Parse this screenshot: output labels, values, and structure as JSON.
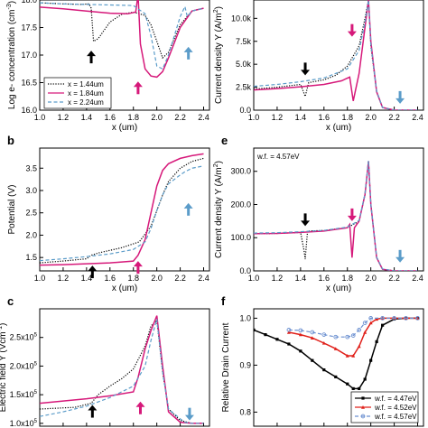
{
  "colors": {
    "black": "#000000",
    "magenta": "#d6197a",
    "blue": "#5b9cc9",
    "red": "#e0201a",
    "lightblue": "#6a8fd0"
  },
  "chart_data": [
    {
      "id": "a",
      "panel_label": "",
      "type": "line",
      "ylabel": "Log e- concentration (cm",
      "ylabel_sup": "-3",
      "ylabel_tail": ")",
      "xlabel": "x (um)",
      "xlim": [
        1.0,
        2.45
      ],
      "ylim": [
        16.0,
        18.0
      ],
      "xticks": [
        1.0,
        1.2,
        1.4,
        1.6,
        1.8,
        2.0,
        2.2,
        2.4
      ],
      "xtick_labels": [
        "1.0",
        "1.2",
        "1.4",
        "1.6",
        "1.8",
        "2.0",
        "2.2",
        "2.4"
      ],
      "yticks": [
        16.0,
        16.5,
        17.0,
        17.5,
        18.0
      ],
      "ytick_labels": [
        "16.0",
        "16.5",
        "17.0",
        "17.5",
        "18.0"
      ],
      "legend": {
        "placement": "bottom-left"
      },
      "series": [
        {
          "name": "x = 1.44um",
          "style": "dotted",
          "color": "#000000",
          "x": [
            1.0,
            1.2,
            1.35,
            1.42,
            1.44,
            1.46,
            1.5,
            1.6,
            1.7,
            1.8,
            1.9,
            1.95,
            2.0,
            2.05,
            2.1,
            2.2,
            2.3,
            2.4
          ],
          "y": [
            17.95,
            17.93,
            17.92,
            17.93,
            17.85,
            17.25,
            17.3,
            17.6,
            17.74,
            17.78,
            17.72,
            17.55,
            17.25,
            16.95,
            17.05,
            17.55,
            17.8,
            17.85
          ]
        },
        {
          "name": "x = 1.84um",
          "style": "solid",
          "color": "#d6197a",
          "x": [
            1.0,
            1.2,
            1.4,
            1.6,
            1.75,
            1.82,
            1.84,
            1.86,
            1.9,
            1.95,
            2.0,
            2.05,
            2.1,
            2.2,
            2.3,
            2.4
          ],
          "y": [
            17.87,
            17.84,
            17.8,
            17.76,
            17.75,
            17.78,
            18.1,
            17.2,
            16.75,
            16.62,
            16.6,
            16.7,
            16.95,
            17.5,
            17.8,
            17.85
          ]
        },
        {
          "name": "x = 2.24um",
          "style": "dashed",
          "color": "#5b9cc9",
          "x": [
            1.0,
            1.2,
            1.4,
            1.6,
            1.8,
            1.9,
            1.95,
            2.0,
            2.05,
            2.1,
            2.15,
            2.2,
            2.24,
            2.26,
            2.3,
            2.4
          ],
          "y": [
            17.95,
            17.93,
            17.92,
            17.91,
            17.9,
            17.75,
            17.35,
            16.8,
            16.75,
            17.0,
            17.35,
            17.7,
            17.88,
            17.7,
            17.8,
            17.85
          ]
        }
      ],
      "arrows": [
        {
          "x": 1.44,
          "color": "#000000",
          "dir": "up",
          "y": 17.08
        },
        {
          "x": 1.84,
          "color": "#d6197a",
          "dir": "up",
          "y": 16.52
        },
        {
          "x": 2.27,
          "color": "#5b9cc9",
          "dir": "up",
          "y": 17.15
        }
      ]
    },
    {
      "id": "b",
      "panel_label": "b",
      "type": "line",
      "ylabel": "Potential (V)",
      "xlabel": "x (um)",
      "xlim": [
        1.0,
        2.45
      ],
      "ylim": [
        1.2,
        3.95
      ],
      "xticks": [
        1.0,
        1.2,
        1.4,
        1.6,
        1.8,
        2.0,
        2.2,
        2.4
      ],
      "xtick_labels": [
        "1.0",
        "1.2",
        "1.4",
        "1.6",
        "1.8",
        "2.0",
        "2.2",
        "2.4"
      ],
      "yticks": [
        1.5,
        2.0,
        2.5,
        3.0,
        3.5
      ],
      "ytick_labels": [
        "1.5",
        "2.0",
        "2.5",
        "3.0",
        "3.5"
      ],
      "series": [
        {
          "name": "x = 1.44um",
          "style": "dotted",
          "color": "#000000",
          "x": [
            1.0,
            1.2,
            1.4,
            1.44,
            1.5,
            1.7,
            1.85,
            1.95,
            2.0,
            2.05,
            2.1,
            2.2,
            2.3,
            2.4
          ],
          "y": [
            1.38,
            1.42,
            1.47,
            1.55,
            1.6,
            1.72,
            1.85,
            2.2,
            2.55,
            2.9,
            3.2,
            3.5,
            3.65,
            3.72
          ]
        },
        {
          "name": "x = 1.84um",
          "style": "solid",
          "color": "#d6197a",
          "x": [
            1.0,
            1.2,
            1.4,
            1.6,
            1.8,
            1.84,
            1.9,
            1.95,
            2.0,
            2.05,
            2.1,
            2.2,
            2.3,
            2.4
          ],
          "y": [
            1.33,
            1.34,
            1.36,
            1.38,
            1.42,
            1.55,
            1.9,
            2.5,
            3.1,
            3.45,
            3.6,
            3.72,
            3.78,
            3.82
          ]
        },
        {
          "name": "x = 2.24um",
          "style": "dashed",
          "color": "#5b9cc9",
          "x": [
            1.0,
            1.2,
            1.4,
            1.6,
            1.8,
            1.9,
            1.95,
            2.0,
            2.05,
            2.1,
            2.2,
            2.24,
            2.3,
            2.4
          ],
          "y": [
            1.43,
            1.47,
            1.52,
            1.58,
            1.68,
            1.85,
            2.15,
            2.55,
            2.9,
            3.15,
            3.35,
            3.42,
            3.5,
            3.55
          ]
        }
      ],
      "arrows": [
        {
          "x": 1.45,
          "color": "#000000",
          "dir": "up",
          "y": 1.32
        },
        {
          "x": 1.84,
          "color": "#d6197a",
          "dir": "up",
          "y": 1.42
        },
        {
          "x": 2.27,
          "color": "#5b9cc9",
          "dir": "up",
          "y": 2.72
        }
      ]
    },
    {
      "id": "c",
      "panel_label": "c",
      "type": "line",
      "ylabel": "Electric field Y (Vcm",
      "ylabel_sup": "-1",
      "ylabel_tail": ")",
      "xlim": [
        1.0,
        2.45
      ],
      "ylim": [
        95000,
        300000
      ],
      "yticks": [
        100000,
        150000,
        200000,
        250000
      ],
      "ytick_labels": [
        "1.0x10",
        "1.5x10",
        "2.0x10",
        "2.5x10"
      ],
      "ytick_sup": "5",
      "series": [
        {
          "name": "x = 1.44um",
          "style": "dotted",
          "color": "#000000",
          "x": [
            1.0,
            1.3,
            1.44,
            1.5,
            1.6,
            1.7,
            1.8,
            1.9,
            1.95,
            2.0,
            2.05,
            2.1,
            2.2,
            2.3,
            2.4
          ],
          "y": [
            125000,
            128000,
            135000,
            150000,
            165000,
            178000,
            195000,
            235000,
            270000,
            280000,
            190000,
            125000,
            105000,
            100000,
            100000
          ]
        },
        {
          "name": "x = 1.84um",
          "style": "solid",
          "color": "#d6197a",
          "x": [
            1.0,
            1.2,
            1.4,
            1.6,
            1.8,
            1.84,
            1.9,
            1.95,
            2.0,
            2.05,
            2.1,
            2.2,
            2.3,
            2.4
          ],
          "y": [
            135000,
            139000,
            143000,
            148000,
            155000,
            180000,
            230000,
            262000,
            288000,
            200000,
            120000,
            102000,
            100000,
            100000
          ]
        },
        {
          "name": "x = 2.24um",
          "style": "dashed",
          "color": "#5b9cc9",
          "x": [
            1.0,
            1.2,
            1.4,
            1.6,
            1.8,
            1.9,
            1.95,
            2.0,
            2.05,
            2.1,
            2.2,
            2.24,
            2.3,
            2.4
          ],
          "y": [
            112000,
            120000,
            130000,
            145000,
            165000,
            200000,
            245000,
            282000,
            190000,
            125000,
            108000,
            102000,
            100000,
            100000
          ]
        }
      ],
      "arrows": [
        {
          "x": 1.45,
          "color": "#000000",
          "dir": "up",
          "y": 132000
        },
        {
          "x": 1.86,
          "color": "#d6197a",
          "dir": "up",
          "y": 138000
        },
        {
          "x": 2.28,
          "color": "#5b9cc9",
          "dir": "down",
          "y": 105000
        }
      ]
    },
    {
      "id": "d",
      "panel_label": "",
      "type": "line",
      "ylabel": "Current density Y (A/m",
      "ylabel_sup": "2",
      "ylabel_tail": ")",
      "xlabel": "x (um)",
      "xlim": [
        1.0,
        2.45
      ],
      "ylim": [
        0,
        12000
      ],
      "xticks": [
        1.0,
        1.2,
        1.4,
        1.6,
        1.8,
        2.0,
        2.2,
        2.4
      ],
      "xtick_labels": [
        "1.0",
        "1.2",
        "1.4",
        "1.6",
        "1.8",
        "2.0",
        "2.2",
        "2.4"
      ],
      "yticks": [
        0,
        2500,
        5000,
        7500,
        10000
      ],
      "ytick_labels": [
        "0.0",
        "2.5k",
        "5.0k",
        "7.5k",
        "10.0k"
      ],
      "series": [
        {
          "name": "x = 1.44um",
          "style": "dotted",
          "color": "#000000",
          "x": [
            1.0,
            1.2,
            1.4,
            1.44,
            1.47,
            1.6,
            1.7,
            1.8,
            1.9,
            1.95,
            1.98,
            2.0,
            2.05,
            2.1,
            2.2,
            2.4
          ],
          "y": [
            2300,
            2500,
            2800,
            1500,
            3000,
            3300,
            3800,
            4800,
            7000,
            10000,
            12000,
            7000,
            2000,
            300,
            0,
            0
          ]
        },
        {
          "name": "x = 1.84um",
          "style": "solid",
          "color": "#d6197a",
          "x": [
            1.0,
            1.2,
            1.4,
            1.6,
            1.75,
            1.82,
            1.85,
            1.9,
            1.95,
            1.98,
            2.0,
            2.05,
            2.1,
            2.2,
            2.4
          ],
          "y": [
            2200,
            2350,
            2550,
            2800,
            3200,
            3600,
            1000,
            4000,
            9000,
            12000,
            7500,
            2000,
            300,
            0,
            0
          ]
        },
        {
          "name": "x = 2.24um",
          "style": "dashed",
          "color": "#5b9cc9",
          "x": [
            1.0,
            1.2,
            1.4,
            1.6,
            1.8,
            1.9,
            1.95,
            1.98,
            2.0,
            2.05,
            2.1,
            2.2,
            2.4
          ],
          "y": [
            2600,
            2800,
            3100,
            3500,
            4500,
            6500,
            9500,
            12000,
            7200,
            2100,
            300,
            0,
            0
          ]
        }
      ],
      "arrows": [
        {
          "x": 1.44,
          "color": "#000000",
          "dir": "down",
          "y": 3800
        },
        {
          "x": 1.84,
          "color": "#d6197a",
          "dir": "down",
          "y": 8000
        },
        {
          "x": 2.25,
          "color": "#5b9cc9",
          "dir": "down",
          "y": 700
        }
      ]
    },
    {
      "id": "e",
      "panel_label": "e",
      "type": "line",
      "annotation": "w.f. = 4.57eV",
      "ylabel": "Current density Y (A/m",
      "ylabel_sup": "2",
      "ylabel_tail": ")",
      "xlabel": "x (um)",
      "xlim": [
        1.0,
        2.45
      ],
      "ylim": [
        0,
        370
      ],
      "xticks": [
        1.0,
        1.2,
        1.4,
        1.6,
        1.8,
        2.0,
        2.2,
        2.4
      ],
      "xtick_labels": [
        "1.0",
        "1.2",
        "1.4",
        "1.6",
        "1.8",
        "2.0",
        "2.2",
        "2.4"
      ],
      "yticks": [
        0,
        100,
        200,
        300
      ],
      "ytick_labels": [
        "0.0",
        "100.0",
        "200.0",
        "300.0"
      ],
      "series": [
        {
          "name": "x = 1.44um",
          "style": "dotted",
          "color": "#000000",
          "x": [
            1.0,
            1.2,
            1.4,
            1.43,
            1.44,
            1.46,
            1.6,
            1.8,
            1.9,
            1.95,
            1.98,
            2.0,
            2.05,
            2.1,
            2.2,
            2.4
          ],
          "y": [
            112,
            113,
            116,
            60,
            35,
            120,
            122,
            130,
            150,
            230,
            330,
            200,
            40,
            5,
            0,
            0
          ]
        },
        {
          "name": "x = 1.84um",
          "style": "solid",
          "color": "#d6197a",
          "x": [
            1.0,
            1.2,
            1.4,
            1.6,
            1.8,
            1.82,
            1.84,
            1.86,
            1.9,
            1.95,
            1.98,
            2.0,
            2.05,
            2.1,
            2.2,
            2.4
          ],
          "y": [
            112,
            113,
            116,
            120,
            130,
            140,
            40,
            130,
            150,
            230,
            330,
            200,
            40,
            5,
            0,
            0
          ]
        },
        {
          "name": "x = 2.24um",
          "style": "dashed",
          "color": "#5b9cc9",
          "x": [
            1.0,
            1.2,
            1.4,
            1.6,
            1.8,
            1.9,
            1.95,
            1.98,
            2.0,
            2.05,
            2.1,
            2.2,
            2.4
          ],
          "y": [
            114,
            115,
            118,
            122,
            132,
            152,
            232,
            332,
            202,
            42,
            6,
            0,
            0
          ]
        }
      ],
      "arrows": [
        {
          "x": 1.44,
          "color": "#000000",
          "dir": "down",
          "y": 135
        },
        {
          "x": 1.84,
          "color": "#d6197a",
          "dir": "down",
          "y": 150
        },
        {
          "x": 2.25,
          "color": "#5b9cc9",
          "dir": "down",
          "y": 25
        }
      ]
    },
    {
      "id": "f",
      "panel_label": "f",
      "type": "line",
      "ylabel": "Relative Drain Current",
      "xlim": [
        1.0,
        2.45
      ],
      "ylim": [
        0.77,
        1.02
      ],
      "yticks": [
        0.8,
        0.9,
        1.0
      ],
      "ytick_labels": [
        "0.8",
        "0.9",
        "1.0"
      ],
      "legend": {
        "placement": "bottom-right"
      },
      "series": [
        {
          "name": "w.f. = 4.47eV",
          "style": "solid",
          "marker": "square",
          "color": "#000000",
          "x": [
            1.0,
            1.1,
            1.2,
            1.3,
            1.4,
            1.5,
            1.6,
            1.7,
            1.8,
            1.85,
            1.9,
            1.95,
            2.0,
            2.05,
            2.1,
            2.2,
            2.3,
            2.4
          ],
          "y": [
            0.975,
            0.965,
            0.955,
            0.945,
            0.93,
            0.91,
            0.89,
            0.875,
            0.86,
            0.85,
            0.85,
            0.87,
            0.91,
            0.95,
            0.985,
            0.998,
            1.0,
            1.0
          ]
        },
        {
          "name": "w.f. = 4.52eV",
          "style": "solid",
          "marker": "triangle",
          "color": "#e0201a",
          "x": [
            1.3,
            1.4,
            1.5,
            1.6,
            1.7,
            1.8,
            1.85,
            1.9,
            1.95,
            2.0,
            2.05,
            2.1,
            2.2,
            2.3,
            2.4
          ],
          "y": [
            0.97,
            0.965,
            0.958,
            0.947,
            0.935,
            0.92,
            0.92,
            0.94,
            0.97,
            0.99,
            0.998,
            1.0,
            1.0,
            1.0,
            1.0
          ]
        },
        {
          "name": "w.f. = 4.57eV",
          "style": "dashed",
          "marker": "circle",
          "color": "#6a8fd0",
          "x": [
            1.3,
            1.4,
            1.5,
            1.6,
            1.7,
            1.8,
            1.85,
            1.9,
            1.95,
            2.0,
            2.1,
            2.2,
            2.3,
            2.4
          ],
          "y": [
            0.975,
            0.974,
            0.97,
            0.965,
            0.96,
            0.96,
            0.963,
            0.975,
            0.99,
            1.0,
            1.0,
            1.0,
            1.0,
            1.0
          ]
        }
      ]
    }
  ]
}
